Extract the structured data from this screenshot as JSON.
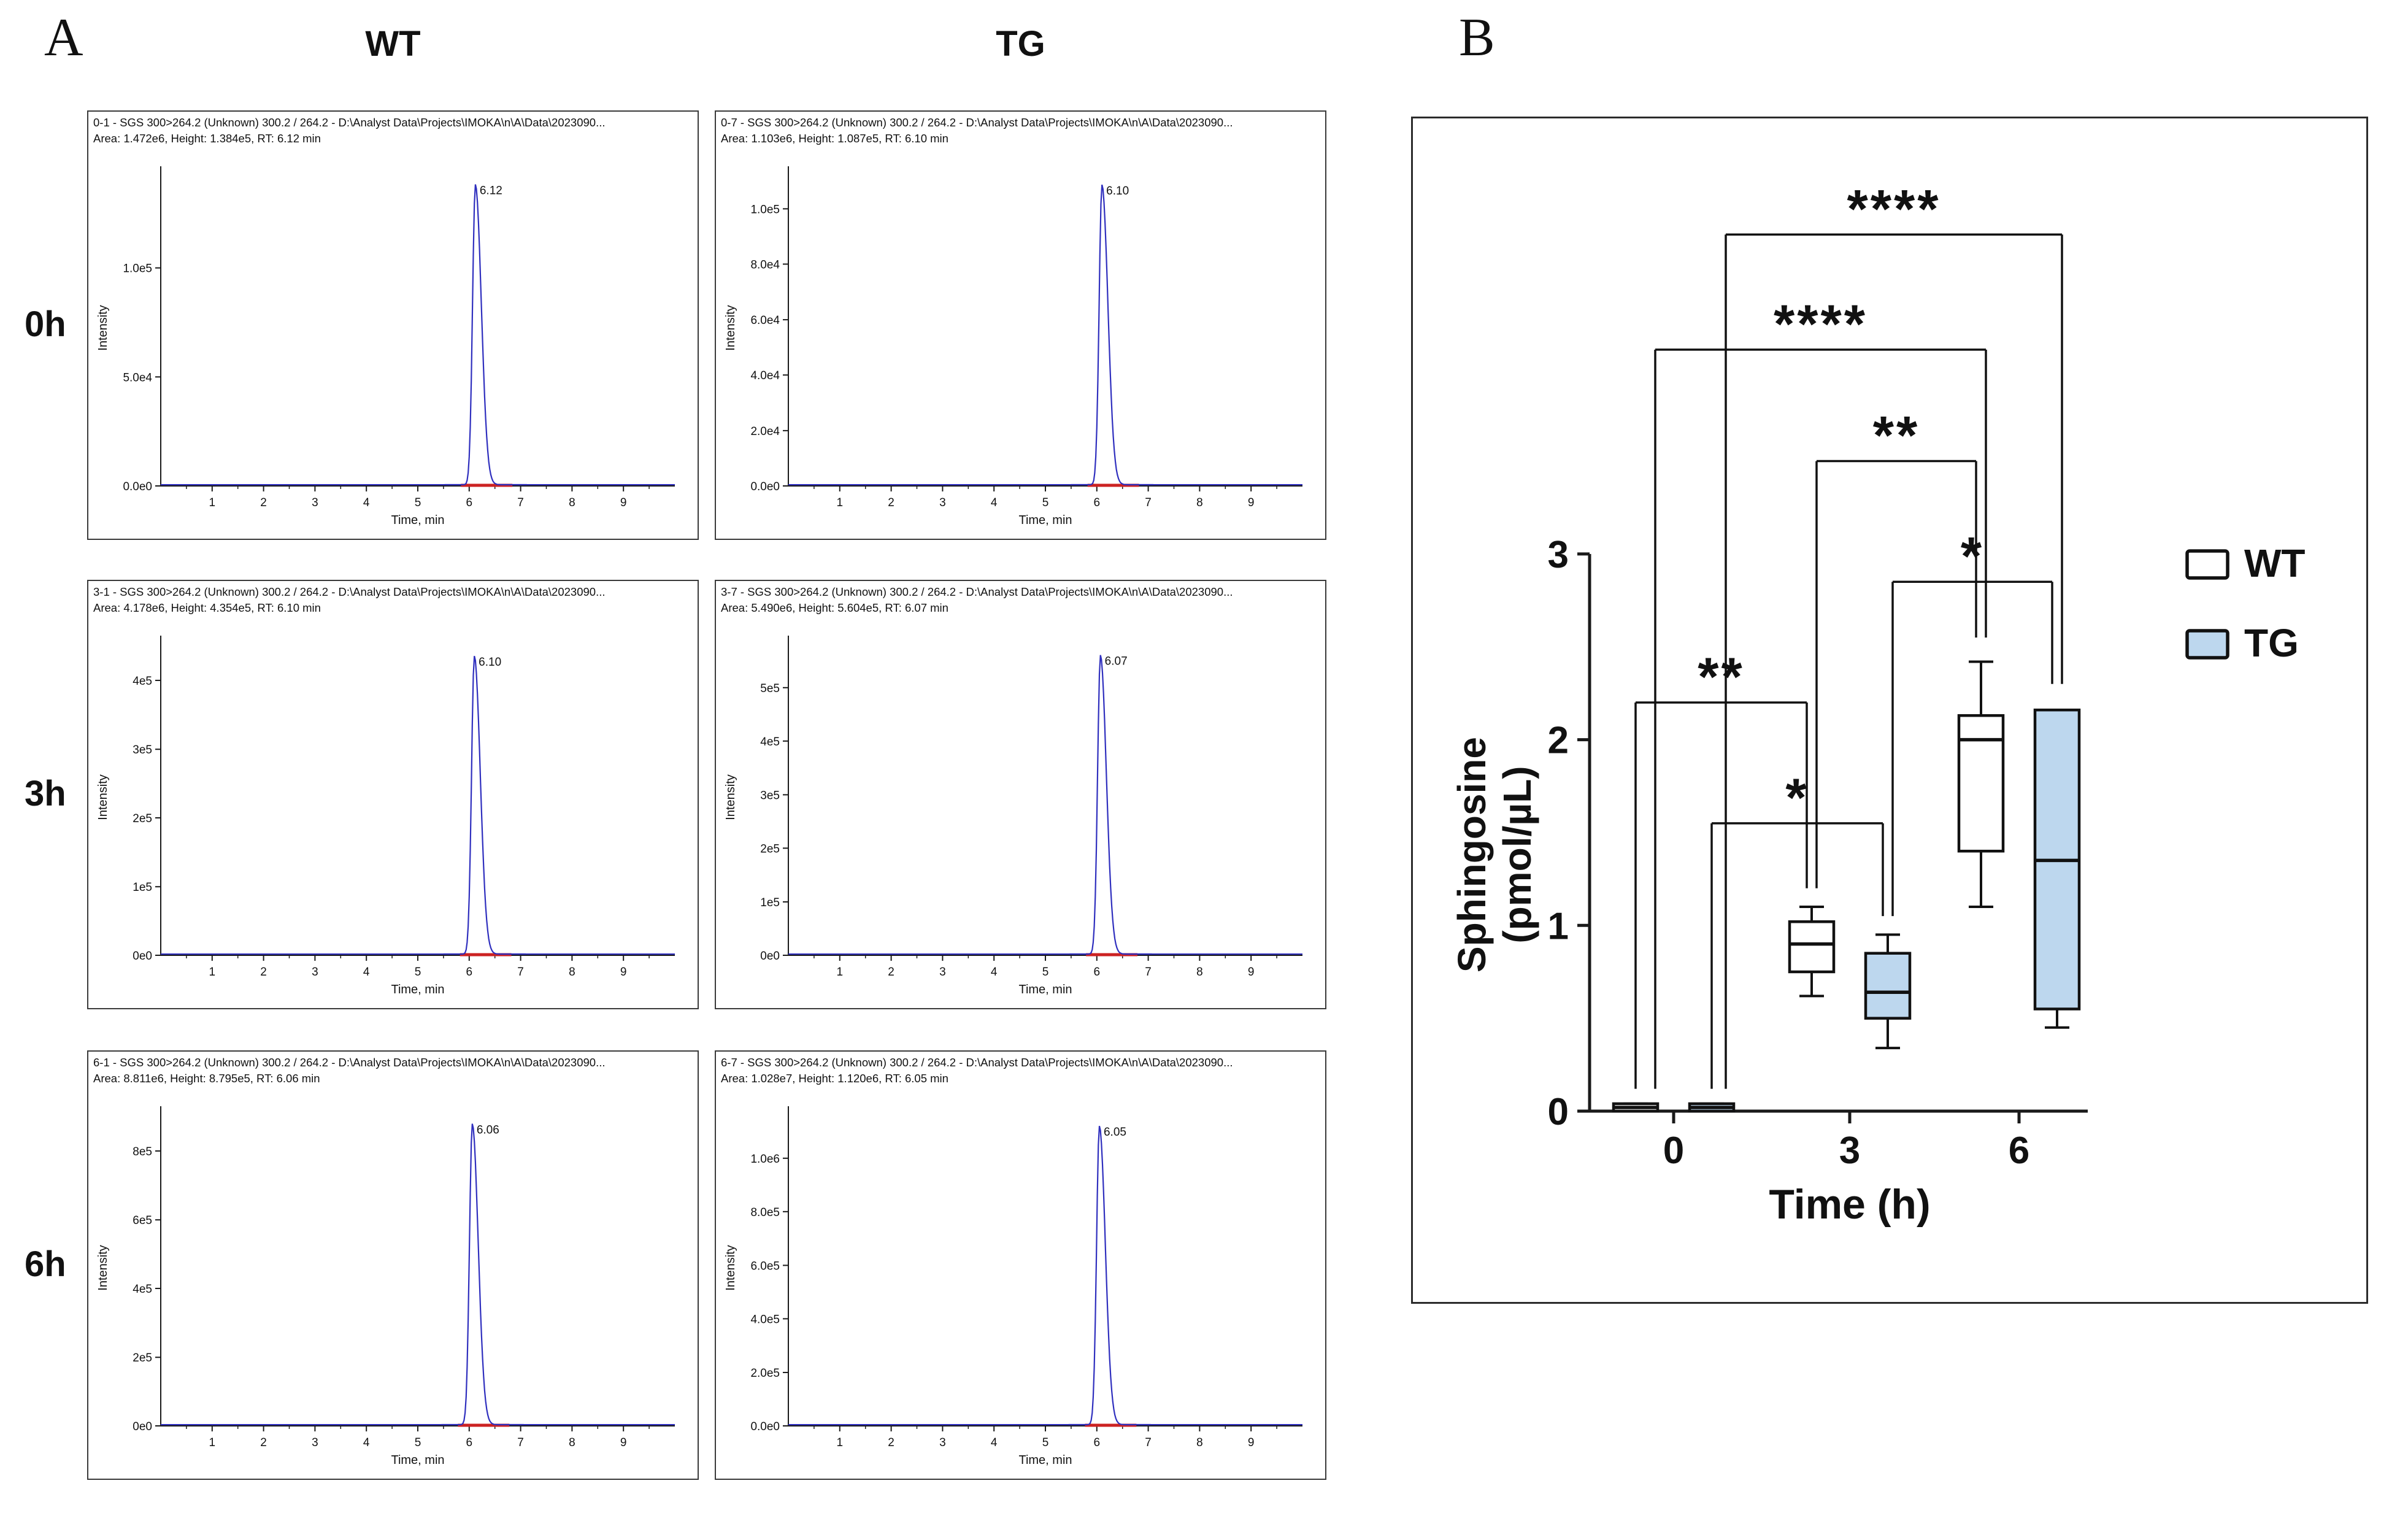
{
  "figure": {
    "panel_a_label": "A",
    "panel_b_label": "B",
    "background": "#ffffff"
  },
  "colors": {
    "trace": "#2f2fbe",
    "integration_marker": "#cc2222",
    "axis": "#1a1a1a",
    "wt_fill": "#ffffff",
    "tg_fill": "#bdd7ee"
  },
  "chart_data": [
    {
      "type": "line",
      "title": "Extracted ion chromatograms SGS 300>264.2",
      "columns": [
        "WT",
        "TG"
      ],
      "rows": [
        "0h",
        "3h",
        "6h"
      ],
      "xlabel": "Time, min",
      "ylabel": "Intensity",
      "xlim": [
        0,
        10
      ],
      "x_ticks": [
        "1",
        "2",
        "3",
        "4",
        "5",
        "6",
        "7",
        "8",
        "9"
      ],
      "traces": [
        {
          "id": "wt-0h",
          "column": "WT",
          "row": "0h",
          "header1": "0-1 - SGS 300>264.2 (Unknown) 300.2 / 264.2 - D:\\Analyst Data\\Projects\\IMOKA\\n\\A\\Data\\2023090...",
          "header2": "Area: 1.472e6, Height: 1.384e5, RT: 6.12 min",
          "rt": 6.12,
          "rt_label": "6.12",
          "peak_frac": 0.954,
          "yticks": [
            {
              "frac": 0,
              "label": "0.0e0"
            },
            {
              "frac": 0.345,
              "label": "5.0e4"
            },
            {
              "frac": 0.69,
              "label": "1.0e5"
            }
          ]
        },
        {
          "id": "tg-0h",
          "column": "TG",
          "row": "0h",
          "header1": "0-7 - SGS 300>264.2 (Unknown) 300.2 / 264.2 - D:\\Analyst Data\\Projects\\IMOKA\\n\\A\\Data\\2023090...",
          "header2": "Area: 1.103e6, Height: 1.087e5, RT: 6.10 min",
          "rt": 6.1,
          "rt_label": "6.10",
          "peak_frac": 0.953,
          "yticks": [
            {
              "frac": 0,
              "label": "0.0e0"
            },
            {
              "frac": 0.175,
              "label": "2.0e4"
            },
            {
              "frac": 0.351,
              "label": "4.0e4"
            },
            {
              "frac": 0.526,
              "label": "6.0e4"
            },
            {
              "frac": 0.702,
              "label": "8.0e4"
            },
            {
              "frac": 0.877,
              "label": "1.0e5"
            }
          ]
        },
        {
          "id": "wt-3h",
          "column": "WT",
          "row": "3h",
          "header1": "3-1 - SGS 300>264.2 (Unknown) 300.2 / 264.2 - D:\\Analyst Data\\Projects\\IMOKA\\n\\A\\Data\\2023090...",
          "header2": "Area: 4.178e6, Height: 4.354e5, RT: 6.10 min",
          "rt": 6.1,
          "rt_label": "6.10",
          "peak_frac": 0.947,
          "yticks": [
            {
              "frac": 0,
              "label": "0e0"
            },
            {
              "frac": 0.217,
              "label": "1e5"
            },
            {
              "frac": 0.435,
              "label": "2e5"
            },
            {
              "frac": 0.652,
              "label": "3e5"
            },
            {
              "frac": 0.87,
              "label": "4e5"
            }
          ]
        },
        {
          "id": "tg-3h",
          "column": "TG",
          "row": "3h",
          "header1": "3-7 - SGS 300>264.2 (Unknown) 300.2 / 264.2 - D:\\Analyst Data\\Projects\\IMOKA\\n\\A\\Data\\2023090...",
          "header2": "Area: 5.490e6, Height: 5.604e5, RT: 6.07 min",
          "rt": 6.07,
          "rt_label": "6.07",
          "peak_frac": 0.95,
          "yticks": [
            {
              "frac": 0,
              "label": "0e0"
            },
            {
              "frac": 0.169,
              "label": "1e5"
            },
            {
              "frac": 0.339,
              "label": "2e5"
            },
            {
              "frac": 0.508,
              "label": "3e5"
            },
            {
              "frac": 0.678,
              "label": "4e5"
            },
            {
              "frac": 0.847,
              "label": "5e5"
            }
          ]
        },
        {
          "id": "wt-6h",
          "column": "WT",
          "row": "6h",
          "header1": "6-1 - SGS 300>264.2 (Unknown) 300.2 / 264.2 - D:\\Analyst Data\\Projects\\IMOKA\\n\\A\\Data\\2023090...",
          "header2": "Area: 8.811e6, Height: 8.795e5, RT: 6.06 min",
          "rt": 6.06,
          "rt_label": "6.06",
          "peak_frac": 0.956,
          "yticks": [
            {
              "frac": 0,
              "label": "0e0"
            },
            {
              "frac": 0.217,
              "label": "2e5"
            },
            {
              "frac": 0.435,
              "label": "4e5"
            },
            {
              "frac": 0.652,
              "label": "6e5"
            },
            {
              "frac": 0.87,
              "label": "8e5"
            }
          ]
        },
        {
          "id": "tg-6h",
          "column": "TG",
          "row": "6h",
          "header1": "6-7 - SGS 300>264.2 (Unknown) 300.2 / 264.2 - D:\\Analyst Data\\Projects\\IMOKA\\n\\A\\Data\\2023090...",
          "header2": "Area: 1.028e7, Height: 1.120e6, RT: 6.05 min",
          "rt": 6.05,
          "rt_label": "6.05",
          "peak_frac": 0.949,
          "yticks": [
            {
              "frac": 0,
              "label": "0.0e0"
            },
            {
              "frac": 0.169,
              "label": "2.0e5"
            },
            {
              "frac": 0.339,
              "label": "4.0e5"
            },
            {
              "frac": 0.508,
              "label": "6.0e5"
            },
            {
              "frac": 0.678,
              "label": "8.0e5"
            },
            {
              "frac": 0.847,
              "label": "1.0e6"
            }
          ]
        }
      ]
    },
    {
      "type": "box",
      "title": "Sphingosine quantification",
      "xlabel": "Time (h)",
      "ylabel_lines": [
        "Sphingosine",
        "(pmol/µL)"
      ],
      "ylim": [
        0,
        3
      ],
      "y_ticks": [
        "0",
        "1",
        "2",
        "3"
      ],
      "x_groups": [
        "0",
        "3",
        "6"
      ],
      "legend": [
        {
          "label": "WT",
          "fill": "#ffffff"
        },
        {
          "label": "TG",
          "fill": "#bdd7ee"
        }
      ],
      "series": [
        {
          "name": "WT",
          "fill": "#ffffff",
          "boxes": [
            {
              "group": "0",
              "min": 0,
              "q1": 0,
              "median": 0.02,
              "q3": 0.04,
              "max": 0.04
            },
            {
              "group": "3",
              "min": 0.62,
              "q1": 0.75,
              "median": 0.9,
              "q3": 1.02,
              "max": 1.1
            },
            {
              "group": "6",
              "min": 1.1,
              "q1": 1.4,
              "median": 2.0,
              "q3": 2.13,
              "max": 2.42
            }
          ]
        },
        {
          "name": "TG",
          "fill": "#bdd7ee",
          "boxes": [
            {
              "group": "0",
              "min": 0,
              "q1": 0,
              "median": 0.02,
              "q3": 0.04,
              "max": 0.04
            },
            {
              "group": "3",
              "min": 0.34,
              "q1": 0.5,
              "median": 0.64,
              "q3": 0.85,
              "max": 0.95
            },
            {
              "group": "6",
              "min": 0.45,
              "q1": 0.55,
              "median": 1.35,
              "q3": 2.16,
              "max": 2.16
            }
          ]
        }
      ],
      "significance": [
        {
          "label": "**",
          "g1": 0,
          "s1": 0,
          "g2": 1,
          "s2": 0,
          "y": 2.2,
          "drop1": 0.12,
          "drop2": 1.2,
          "dx1": 0,
          "dx2": -8
        },
        {
          "label": "*",
          "g1": 0,
          "s1": 1,
          "g2": 1,
          "s2": 1,
          "y": 1.55,
          "drop1": 0.12,
          "drop2": 1.05,
          "dx1": 0,
          "dx2": -8
        },
        {
          "label": "**",
          "g1": 1,
          "s1": 0,
          "g2": 2,
          "s2": 0,
          "y": 3.5,
          "drop1": 1.2,
          "drop2": 2.55,
          "dx1": 8,
          "dx2": -8
        },
        {
          "label": "*",
          "g1": 1,
          "s1": 1,
          "g2": 2,
          "s2": 1,
          "y": 2.85,
          "drop1": 1.05,
          "drop2": 2.3,
          "dx1": 8,
          "dx2": -8
        },
        {
          "label": "****",
          "g1": 0,
          "s1": 0,
          "g2": 2,
          "s2": 0,
          "y": 4.1,
          "drop1": 0.12,
          "drop2": 2.55,
          "dx1": 32,
          "dx2": 8
        },
        {
          "label": "****",
          "g1": 0,
          "s1": 1,
          "g2": 2,
          "s2": 1,
          "y": 4.72,
          "drop1": 0.12,
          "drop2": 2.3,
          "dx1": 23,
          "dx2": 8
        }
      ]
    }
  ]
}
